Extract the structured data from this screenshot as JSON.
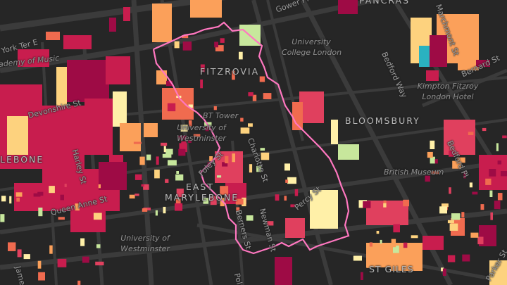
{
  "map": {
    "boundary_color": "#ff77c0",
    "background_color": "#262626",
    "road_color": "#3b3b3b",
    "building_palette": [
      "#9e0b45",
      "#c81d4e",
      "#e0405e",
      "#f06b4f",
      "#fba05a",
      "#fdd27e",
      "#fff0a8",
      "#c7e79c",
      "#2ab2c0",
      "#4b74c9"
    ],
    "labels": {
      "gower_pl": "Gower Pl",
      "pancras": "PANCRAS",
      "york_ter_e": "York Ter E",
      "academy_of_music": "ademy of Music",
      "fitzrovia": "FITZROVIA",
      "ucl_line1": "University",
      "ucl_line2": "College London",
      "bedford_way": "Bedford Way",
      "marchmont_st": "Marchmont St",
      "bernard_st": "Bernard St",
      "kimpton_line1": "Kimpton Fitzroy",
      "kimpton_line2": "London Hotel",
      "bloomsbury": "BLOOMSBURY",
      "devonshire_st": "Devonshire St",
      "bt_tower": "BT Tower",
      "uow_top_line1": "University of",
      "uow_top_line2": "Westminster",
      "marylebone": "LEBONE",
      "harley_st": "Harley St",
      "foley_st": "Foley St",
      "charlotte_st": "Charlotte St",
      "east_marylebone_line1": "EAST",
      "east_marylebone_line2": "MARYLEBONE",
      "queen_anne_st": "Queen Anne St",
      "berners_st": "Berners St",
      "newman_st": "Newman St",
      "percy_st": "Percy St",
      "british_museum": "British Museum",
      "bedford_pl": "Bedford Pl",
      "uow_bottom_line1": "University of",
      "uow_bottom_line2": "Westminster",
      "james": "James",
      "pola": "Pola",
      "st_giles": "ST GILES",
      "parker_st": "Parker St"
    }
  }
}
